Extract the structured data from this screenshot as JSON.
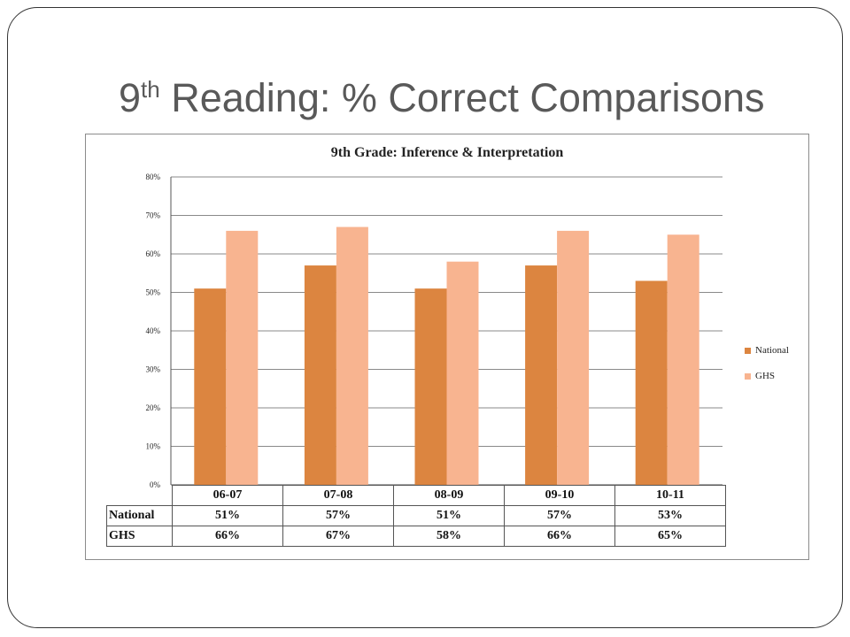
{
  "slide": {
    "title_prefix": "9",
    "title_sup": "th",
    "title_rest": " Reading:  % Correct Comparisons"
  },
  "chart_data": {
    "type": "bar",
    "title": "9th Grade: Inference & Interpretation",
    "categories": [
      "06-07",
      "07-08",
      "08-09",
      "09-10",
      "10-11"
    ],
    "series": [
      {
        "name": "National",
        "values": [
          51,
          57,
          51,
          57,
          53
        ],
        "display": [
          "51%",
          "57%",
          "51%",
          "57%",
          "53%"
        ],
        "color": "#dc8540"
      },
      {
        "name": "GHS",
        "values": [
          66,
          67,
          58,
          66,
          65
        ],
        "display": [
          "66%",
          "67%",
          "58%",
          "66%",
          "65%"
        ],
        "color": "#f8b490"
      }
    ],
    "ylim": [
      0,
      80
    ],
    "yticks": [
      "0%",
      "10%",
      "20%",
      "30%",
      "40%",
      "50%",
      "60%",
      "70%",
      "80%"
    ],
    "grid": true,
    "legend_position": "right"
  }
}
